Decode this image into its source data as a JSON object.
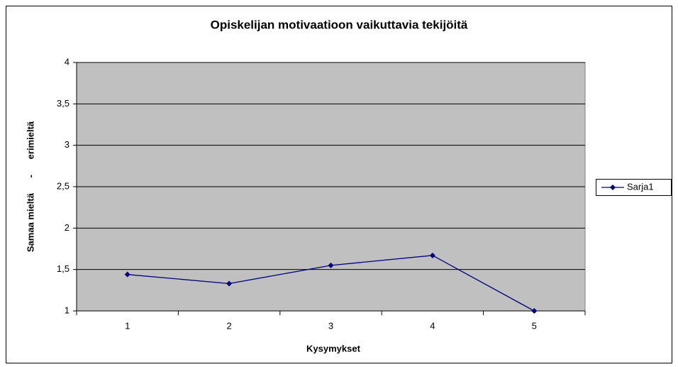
{
  "chart_data": {
    "type": "line",
    "title": "Opiskelijan motivaatioon vaikuttavia tekijöitä",
    "x_label": "Kysymykset",
    "y_label": "Samaa mieltä      -      erimieltä",
    "categories": [
      "1",
      "2",
      "3",
      "4",
      "5"
    ],
    "series": [
      {
        "name": "Sarja1",
        "color": "#000080",
        "values": [
          1.44,
          1.33,
          1.55,
          1.67,
          1.0
        ]
      }
    ],
    "ylim": [
      1,
      4
    ],
    "yticks": [
      1,
      {
        "value": 1.5,
        "label": "1,5"
      },
      2,
      {
        "value": 2.5,
        "label": "2,5"
      },
      3,
      {
        "value": 3.5,
        "label": "3,5"
      },
      4
    ],
    "grid": true,
    "legend": "right"
  }
}
